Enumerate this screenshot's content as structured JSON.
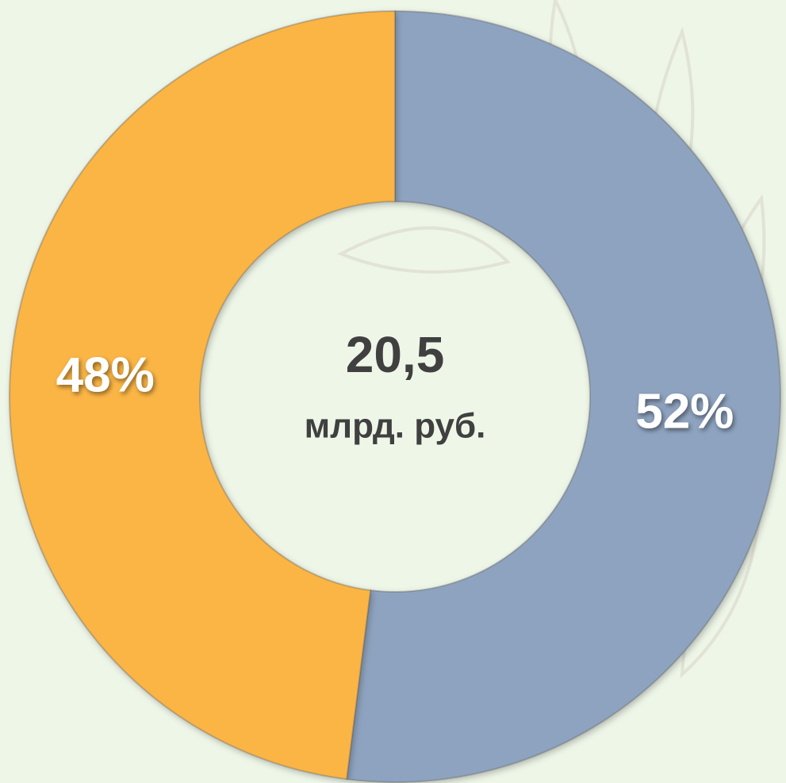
{
  "chart_data": {
    "type": "donut",
    "values": [
      52,
      48
    ],
    "value_labels": [
      "52%",
      "48%"
    ],
    "colors": [
      "#8ea3bf",
      "#fbb545"
    ],
    "center_text": {
      "total": "20,5",
      "unit": "млрд. руб."
    }
  }
}
